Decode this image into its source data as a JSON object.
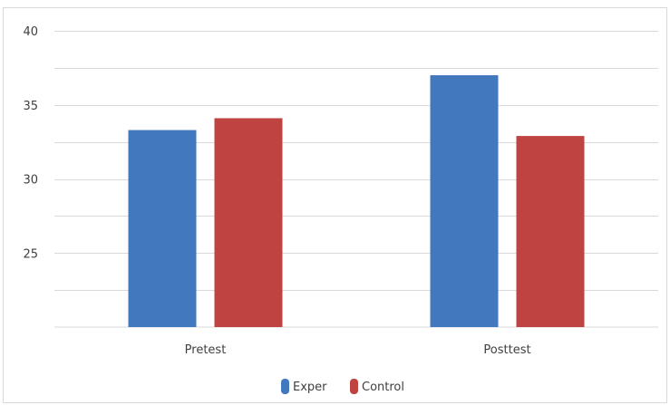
{
  "chart_data": {
    "type": "bar",
    "title": "",
    "xlabel": "",
    "ylabel": "",
    "categories": [
      "Pretest",
      "Posttest"
    ],
    "series": [
      {
        "name": "Exper",
        "values": [
          33.3,
          37.0
        ],
        "color": "#4178be"
      },
      {
        "name": "Control",
        "values": [
          34.1,
          32.9
        ],
        "color": "#be4341"
      }
    ],
    "ylim": [
      20,
      40
    ],
    "yticks": [
      25,
      30,
      35,
      40
    ],
    "grid": true,
    "gridlines": [
      22.5,
      25,
      27.5,
      30,
      32.5,
      35,
      37.5,
      40
    ],
    "legend_position": "bottom"
  }
}
